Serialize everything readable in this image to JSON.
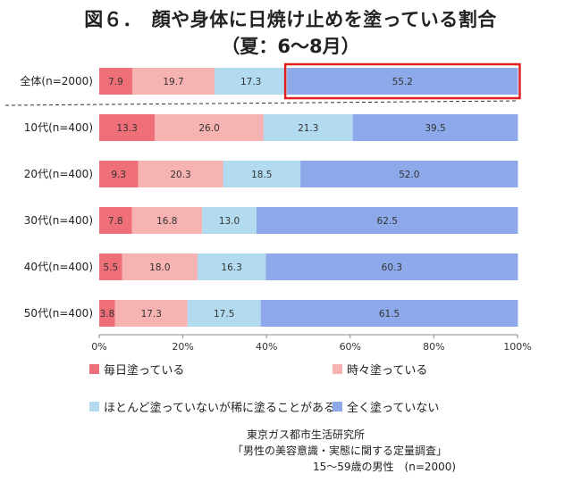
{
  "title": "図６．　顔や身体に日焼け止めを塗っている割合",
  "subtitle": "（夏：6～8月）",
  "source": {
    "line1": "東京ガス都市生活研究所",
    "line2": "「男性の美容意識・実態に関する定量調査」",
    "line3": "15～59歳の男性　(n=2000)"
  },
  "chart_data": {
    "type": "bar",
    "orientation": "horizontal",
    "stacked": true,
    "percent_stacked": true,
    "categories": [
      "全体(n=2000)",
      "10代(n=400)",
      "20代(n=400)",
      "30代(n=400)",
      "40代(n=400)",
      "50代(n=400)"
    ],
    "series": [
      {
        "name": "毎日塗っている",
        "color": "#ee6f78",
        "values": [
          7.9,
          13.3,
          9.3,
          7.8,
          5.5,
          3.8
        ]
      },
      {
        "name": "時々塗っている",
        "color": "#f7b2b2",
        "values": [
          19.7,
          26.0,
          20.3,
          16.8,
          18.0,
          17.3
        ]
      },
      {
        "name": "ほとんど塗っていないが稀に塗ることがある",
        "color": "#b3dbef",
        "values": [
          17.3,
          21.3,
          18.5,
          13.0,
          16.3,
          17.5
        ]
      },
      {
        "name": "全く塗っていない",
        "color": "#8da9ea",
        "values": [
          55.2,
          39.5,
          52.0,
          62.5,
          60.3,
          61.5
        ]
      }
    ],
    "xlim": [
      0,
      100
    ],
    "x_ticks": [
      "0%",
      "20%",
      "40%",
      "60%",
      "80%",
      "100%"
    ],
    "legend": "bottom",
    "highlight": {
      "category": "全体(n=2000)",
      "series": "全く塗っていない",
      "color": "#e02020"
    }
  }
}
